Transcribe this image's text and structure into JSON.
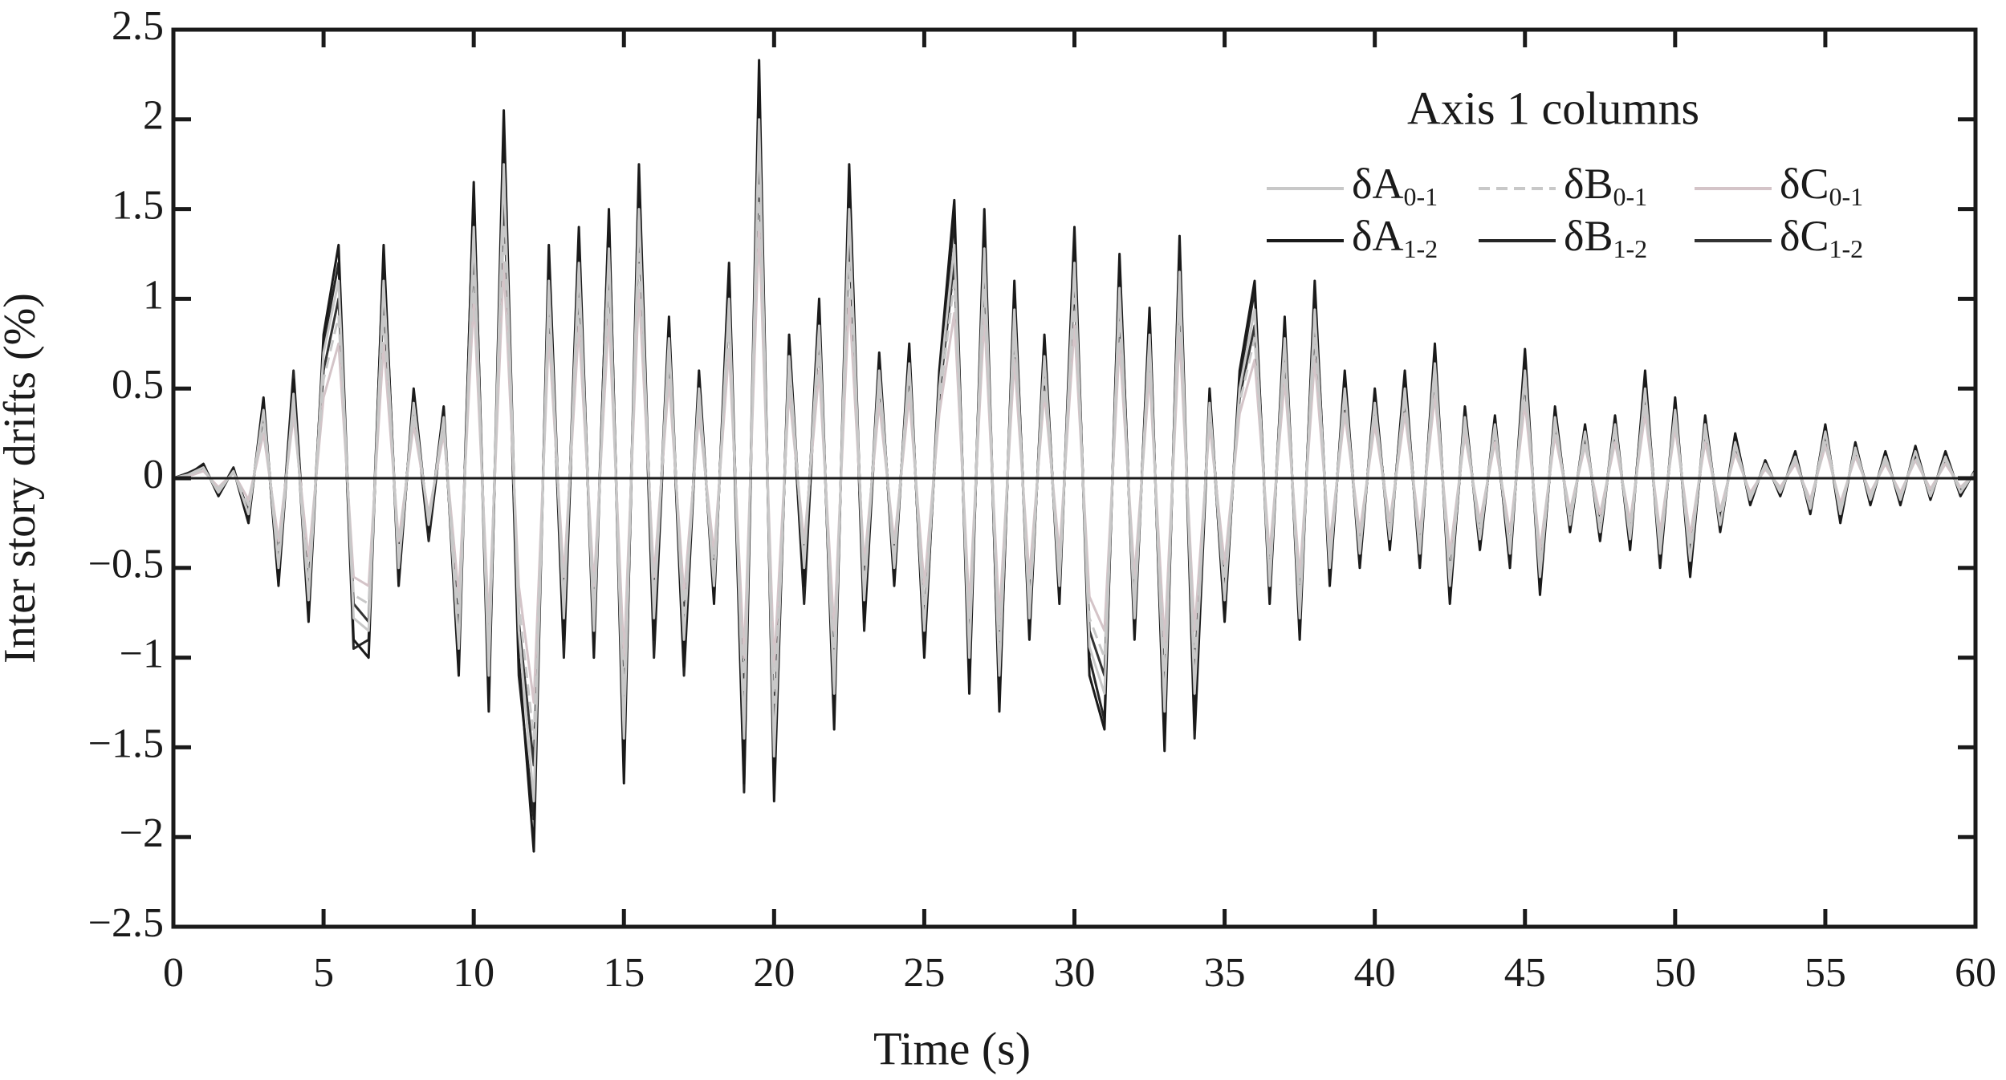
{
  "chart_data": {
    "type": "line",
    "title": "Axis 1 columns",
    "x_label": "Time (s)",
    "y_label": "Inter story drifts (%)",
    "legend": "upper right",
    "xlim": [
      0,
      60
    ],
    "xticks": [
      0,
      5,
      10,
      15,
      20,
      25,
      30,
      35,
      40,
      45,
      50,
      55,
      60
    ],
    "ylim": [
      -2.5,
      2.5
    ],
    "yticks": [
      {
        "value": -2.5,
        "label": "−2.5"
      },
      {
        "value": -2,
        "label": "−2"
      },
      {
        "value": -1.5,
        "label": "−1.5"
      },
      {
        "value": -1,
        "label": "−1"
      },
      {
        "value": -0.5,
        "label": "−0.5"
      },
      0,
      0.5,
      1,
      1.5,
      2,
      2.5
    ],
    "x": [
      0,
      0.5,
      1,
      1.5,
      2,
      2.5,
      3,
      3.5,
      4,
      4.5,
      5,
      5.5,
      6,
      6.5,
      7,
      7.5,
      8,
      8.5,
      9,
      9.5,
      10,
      10.5,
      11,
      11.5,
      12,
      12.5,
      13,
      13.5,
      14,
      14.5,
      15,
      15.5,
      16,
      16.5,
      17,
      17.5,
      18,
      18.5,
      19,
      19.5,
      20,
      20.5,
      21,
      21.5,
      22,
      22.5,
      23,
      23.5,
      24,
      24.5,
      25,
      25.5,
      26,
      26.5,
      27,
      27.5,
      28,
      28.5,
      29,
      29.5,
      30,
      30.5,
      31,
      31.5,
      32,
      32.5,
      33,
      33.5,
      34,
      34.5,
      35,
      35.5,
      36,
      36.5,
      37,
      37.5,
      38,
      38.5,
      39,
      39.5,
      40,
      40.5,
      41,
      41.5,
      42,
      42.5,
      43,
      43.5,
      44,
      44.5,
      45,
      45.5,
      46,
      46.5,
      47,
      47.5,
      48,
      48.5,
      49,
      49.5,
      50,
      50.5,
      51,
      51.5,
      52,
      52.5,
      53,
      53.5,
      54,
      54.5,
      55,
      55.5,
      56,
      56.5,
      57,
      57.5,
      58,
      58.5,
      59,
      59.5,
      60
    ],
    "series": [
      {
        "name": "δA0-1",
        "color": "#c8c8c8",
        "dash": "solid",
        "values": [
          0,
          0.02,
          0.06,
          -0.08,
          0.04,
          -0.2,
          0.38,
          -0.5,
          0.47,
          -0.68,
          0.7,
          1.1,
          -0.78,
          -0.85,
          1.1,
          -0.5,
          0.42,
          -0.26,
          0.34,
          -0.95,
          1.4,
          -1.1,
          1.75,
          -0.85,
          -1.8,
          1.1,
          -0.78,
          1.2,
          -0.85,
          1.28,
          -1.45,
          1.5,
          -0.78,
          0.78,
          -0.9,
          0.5,
          -0.6,
          1.0,
          -1.45,
          2.0,
          -1.55,
          0.68,
          -0.5,
          0.85,
          -1.2,
          1.5,
          -0.68,
          0.6,
          -0.5,
          0.64,
          -0.85,
          0.5,
          1.3,
          -1.0,
          1.28,
          -1.1,
          0.94,
          -0.78,
          0.68,
          -0.6,
          1.2,
          -0.94,
          -1.2,
          1.06,
          -0.78,
          0.8,
          -1.3,
          1.15,
          -1.2,
          0.42,
          -0.68,
          0.5,
          0.94,
          -0.6,
          0.78,
          -0.78,
          0.94,
          -0.5,
          0.5,
          -0.42,
          0.42,
          -0.34,
          0.5,
          -0.42,
          0.64,
          -0.6,
          0.34,
          -0.34,
          0.3,
          -0.42,
          0.6,
          -0.55,
          0.34,
          -0.26,
          0.26,
          -0.3,
          0.3,
          -0.34,
          0.5,
          -0.42,
          0.38,
          -0.46,
          0.3,
          -0.26,
          0.2,
          -0.12,
          0.08,
          -0.08,
          0.12,
          -0.17,
          0.26,
          -0.2,
          0.17,
          -0.12,
          0.12,
          -0.12,
          0.15,
          -0.1,
          0.12,
          -0.08,
          0.04
        ]
      },
      {
        "name": "δB0-1",
        "color": "#c8c8c8",
        "dash": "dashed",
        "values": [
          0,
          0.02,
          0.05,
          -0.06,
          0.03,
          -0.15,
          0.3,
          -0.4,
          0.4,
          -0.55,
          0.55,
          0.9,
          -0.65,
          -0.7,
          0.9,
          -0.4,
          0.35,
          -0.22,
          0.28,
          -0.75,
          1.15,
          -0.9,
          1.4,
          -0.7,
          -1.45,
          0.9,
          -0.65,
          1.0,
          -0.7,
          1.05,
          -1.2,
          1.25,
          -0.65,
          0.65,
          -0.75,
          0.4,
          -0.5,
          0.85,
          -1.2,
          1.65,
          -1.25,
          0.55,
          -0.42,
          0.7,
          -1.0,
          1.2,
          -0.55,
          0.5,
          -0.42,
          0.55,
          -0.7,
          0.42,
          1.1,
          -0.85,
          1.05,
          -0.9,
          0.78,
          -0.65,
          0.55,
          -0.5,
          1.0,
          -0.78,
          -1.0,
          0.88,
          -0.65,
          0.68,
          -1.08,
          0.95,
          -1.0,
          0.36,
          -0.56,
          0.42,
          0.78,
          -0.5,
          0.64,
          -0.64,
          0.78,
          -0.42,
          0.42,
          -0.36,
          0.36,
          -0.28,
          0.42,
          -0.36,
          0.54,
          -0.5,
          0.28,
          -0.28,
          0.24,
          -0.36,
          0.5,
          -0.46,
          0.28,
          -0.2,
          0.2,
          -0.24,
          0.24,
          -0.28,
          0.42,
          -0.36,
          0.32,
          -0.38,
          0.24,
          -0.2,
          0.16,
          -0.1,
          0.06,
          -0.06,
          0.1,
          -0.14,
          0.2,
          -0.16,
          0.14,
          -0.1,
          0.1,
          -0.1,
          0.12,
          -0.08,
          0.1,
          -0.06,
          0.03
        ]
      },
      {
        "name": "δC0-1",
        "color": "#d4c4c8",
        "dash": "solid",
        "values": [
          0,
          0.01,
          0.04,
          -0.05,
          0.03,
          -0.12,
          0.25,
          -0.35,
          0.35,
          -0.45,
          0.45,
          0.75,
          -0.55,
          -0.6,
          0.75,
          -0.35,
          0.3,
          -0.2,
          0.25,
          -0.65,
          1.0,
          -0.8,
          1.2,
          -0.6,
          -1.25,
          0.8,
          -0.55,
          0.85,
          -0.6,
          0.9,
          -1.0,
          1.05,
          -0.55,
          0.55,
          -0.65,
          0.35,
          -0.42,
          0.72,
          -1.0,
          1.4,
          -1.05,
          0.48,
          -0.36,
          0.6,
          -0.85,
          1.0,
          -0.48,
          0.42,
          -0.36,
          0.46,
          -0.6,
          0.36,
          0.92,
          -0.72,
          0.9,
          -0.78,
          0.66,
          -0.55,
          0.48,
          -0.42,
          0.85,
          -0.66,
          -0.85,
          0.75,
          -0.55,
          0.58,
          -0.92,
          0.8,
          -0.85,
          0.3,
          -0.48,
          0.36,
          0.66,
          -0.42,
          0.55,
          -0.55,
          0.66,
          -0.36,
          0.36,
          -0.3,
          0.3,
          -0.24,
          0.36,
          -0.3,
          0.46,
          -0.42,
          0.24,
          -0.24,
          0.2,
          -0.3,
          0.42,
          -0.4,
          0.24,
          -0.18,
          0.18,
          -0.2,
          0.2,
          -0.24,
          0.36,
          -0.3,
          0.28,
          -0.32,
          0.2,
          -0.18,
          0.14,
          -0.08,
          0.05,
          -0.05,
          0.08,
          -0.12,
          0.18,
          -0.14,
          0.12,
          -0.08,
          0.08,
          -0.08,
          0.1,
          -0.06,
          0.08,
          -0.05,
          0.03
        ]
      },
      {
        "name": "δA1-2",
        "color": "#1a1a1a",
        "dash": "solid",
        "values": [
          0,
          0.02,
          0.08,
          -0.1,
          0.05,
          -0.25,
          0.45,
          -0.6,
          0.55,
          -0.8,
          0.8,
          1.3,
          -0.9,
          -1.0,
          1.3,
          -0.6,
          0.5,
          -0.3,
          0.4,
          -1.1,
          1.65,
          -1.3,
          2.05,
          -1.0,
          -2.08,
          1.3,
          -0.9,
          1.4,
          -1.0,
          1.5,
          -1.7,
          1.75,
          -0.9,
          0.9,
          -1.05,
          0.6,
          -0.7,
          1.2,
          -1.7,
          2.33,
          -1.8,
          0.8,
          -0.6,
          1.0,
          -1.4,
          1.75,
          -0.8,
          0.7,
          -0.6,
          0.75,
          -1.0,
          0.6,
          1.55,
          -1.2,
          1.5,
          -1.3,
          1.1,
          -0.9,
          0.8,
          -0.7,
          1.4,
          -1.1,
          -1.4,
          1.25,
          -0.9,
          0.95,
          -1.52,
          1.35,
          -1.4,
          0.5,
          -0.8,
          0.6,
          1.1,
          -0.7,
          0.9,
          -0.9,
          1.1,
          -0.6,
          0.6,
          -0.5,
          0.5,
          -0.4,
          0.6,
          -0.5,
          0.75,
          -0.7,
          0.4,
          -0.4,
          0.35,
          -0.5,
          0.72,
          -0.65,
          0.4,
          -0.3,
          0.3,
          -0.35,
          0.35,
          -0.4,
          0.6,
          -0.5,
          0.45,
          -0.55,
          0.35,
          -0.3,
          0.25,
          -0.15,
          0.1,
          -0.1,
          0.15,
          -0.2,
          0.3,
          -0.25,
          0.2,
          -0.15,
          0.15,
          -0.15,
          0.18,
          -0.12,
          0.15,
          -0.1,
          0.05
        ]
      },
      {
        "name": "δB1-2",
        "color": "#262626",
        "dash": "solid",
        "values": [
          0,
          0.03,
          0.07,
          -0.09,
          0.06,
          -0.22,
          0.4,
          -0.55,
          0.6,
          -0.7,
          0.75,
          1.2,
          -0.95,
          -0.9,
          1.25,
          -0.55,
          0.45,
          -0.35,
          0.35,
          -1.0,
          1.6,
          -1.2,
          1.8,
          -1.1,
          -1.9,
          1.2,
          -1.0,
          1.3,
          -0.9,
          1.45,
          -1.6,
          1.6,
          -1.0,
          0.85,
          -1.1,
          0.55,
          -0.65,
          1.1,
          -1.75,
          2.2,
          -1.7,
          0.75,
          -0.7,
          0.9,
          -1.3,
          1.6,
          -0.85,
          0.65,
          -0.55,
          0.7,
          -0.95,
          0.55,
          1.45,
          -1.1,
          1.4,
          -1.25,
          1.05,
          -0.85,
          0.75,
          -0.65,
          1.3,
          -1.0,
          -1.35,
          1.2,
          -0.85,
          0.9,
          -1.45,
          1.3,
          -1.45,
          0.45,
          -0.75,
          0.55,
          1.05,
          -0.65,
          0.85,
          -0.85,
          1.05,
          -0.55,
          0.55,
          -0.45,
          0.45,
          -0.35,
          0.55,
          -0.45,
          0.7,
          -0.65,
          0.35,
          -0.35,
          0.3,
          -0.45,
          0.65,
          -0.6,
          0.35,
          -0.25,
          0.25,
          -0.3,
          0.3,
          -0.35,
          0.55,
          -0.45,
          0.4,
          -0.5,
          0.3,
          -0.25,
          0.2,
          -0.12,
          0.08,
          -0.08,
          0.12,
          -0.18,
          0.28,
          -0.22,
          0.18,
          -0.12,
          0.12,
          -0.12,
          0.15,
          -0.1,
          0.12,
          -0.08,
          0.04
        ]
      },
      {
        "name": "δC1-2",
        "color": "#333333",
        "dash": "solid",
        "values": [
          0,
          0.01,
          0.06,
          -0.07,
          0.04,
          -0.18,
          0.35,
          -0.45,
          0.45,
          -0.6,
          0.6,
          1.0,
          -0.7,
          -0.8,
          1.0,
          -0.45,
          0.4,
          -0.25,
          0.3,
          -0.85,
          1.3,
          -1.0,
          1.6,
          -0.8,
          -1.6,
          1.0,
          -0.7,
          1.1,
          -0.8,
          1.2,
          -1.3,
          1.4,
          -0.7,
          0.7,
          -0.8,
          0.45,
          -0.55,
          0.95,
          -1.3,
          1.8,
          -1.4,
          0.6,
          -0.45,
          0.8,
          -1.1,
          1.35,
          -0.6,
          0.55,
          -0.45,
          0.6,
          -0.8,
          0.45,
          1.2,
          -0.95,
          1.15,
          -1.0,
          0.85,
          -0.7,
          0.6,
          -0.55,
          1.1,
          -0.85,
          -1.1,
          0.95,
          -0.7,
          0.75,
          -1.2,
          1.05,
          -1.1,
          0.4,
          -0.6,
          0.45,
          0.85,
          -0.55,
          0.7,
          -0.7,
          0.85,
          -0.45,
          0.45,
          -0.4,
          0.4,
          -0.3,
          0.45,
          -0.4,
          0.6,
          -0.55,
          0.3,
          -0.3,
          0.25,
          -0.4,
          0.55,
          -0.5,
          0.3,
          -0.22,
          0.22,
          -0.25,
          0.25,
          -0.3,
          0.45,
          -0.4,
          0.35,
          -0.42,
          0.25,
          -0.22,
          0.18,
          -0.1,
          0.07,
          -0.07,
          0.1,
          -0.15,
          0.22,
          -0.18,
          0.15,
          -0.1,
          0.1,
          -0.1,
          0.12,
          -0.08,
          0.1,
          -0.07,
          0.03
        ]
      }
    ]
  }
}
